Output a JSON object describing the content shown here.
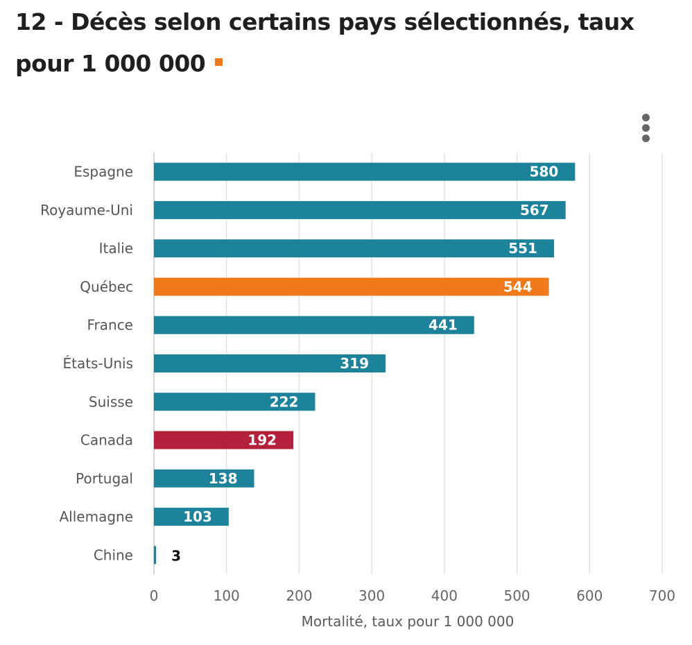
{
  "title": "12 - Décès selon certains pays sélectionnés, taux pour 1 000 000",
  "colors": {
    "default": "#1d839b",
    "highlight": "#f07a1a",
    "canada": "#b41f3b",
    "grid": "#e3e3e3",
    "tick_text": "#666666"
  },
  "menu_icon": "vertical-ellipsis-icon",
  "chart_data": {
    "type": "bar",
    "orientation": "horizontal",
    "title": "12 - Décès selon certains pays sélectionnés, taux pour 1 000 000",
    "xlabel": "Mortalité, taux pour 1 000 000",
    "ylabel": "",
    "xlim": [
      0,
      700
    ],
    "xticks": [
      0,
      100,
      200,
      300,
      400,
      500,
      600,
      700
    ],
    "grid": true,
    "categories": [
      "Espagne",
      "Royaume-Uni",
      "Italie",
      "Québec",
      "France",
      "États-Unis",
      "Suisse",
      "Canada",
      "Portugal",
      "Allemagne",
      "Chine"
    ],
    "values": [
      580,
      567,
      551,
      544,
      441,
      319,
      222,
      192,
      138,
      103,
      3
    ],
    "bar_colors": [
      "#1d839b",
      "#1d839b",
      "#1d839b",
      "#f07a1a",
      "#1d839b",
      "#1d839b",
      "#1d839b",
      "#b41f3b",
      "#1d839b",
      "#1d839b",
      "#1d839b"
    ],
    "data_labels": [
      "580",
      "567",
      "551",
      "544",
      "441",
      "319",
      "222",
      "192",
      "138",
      "103",
      "3"
    ]
  }
}
